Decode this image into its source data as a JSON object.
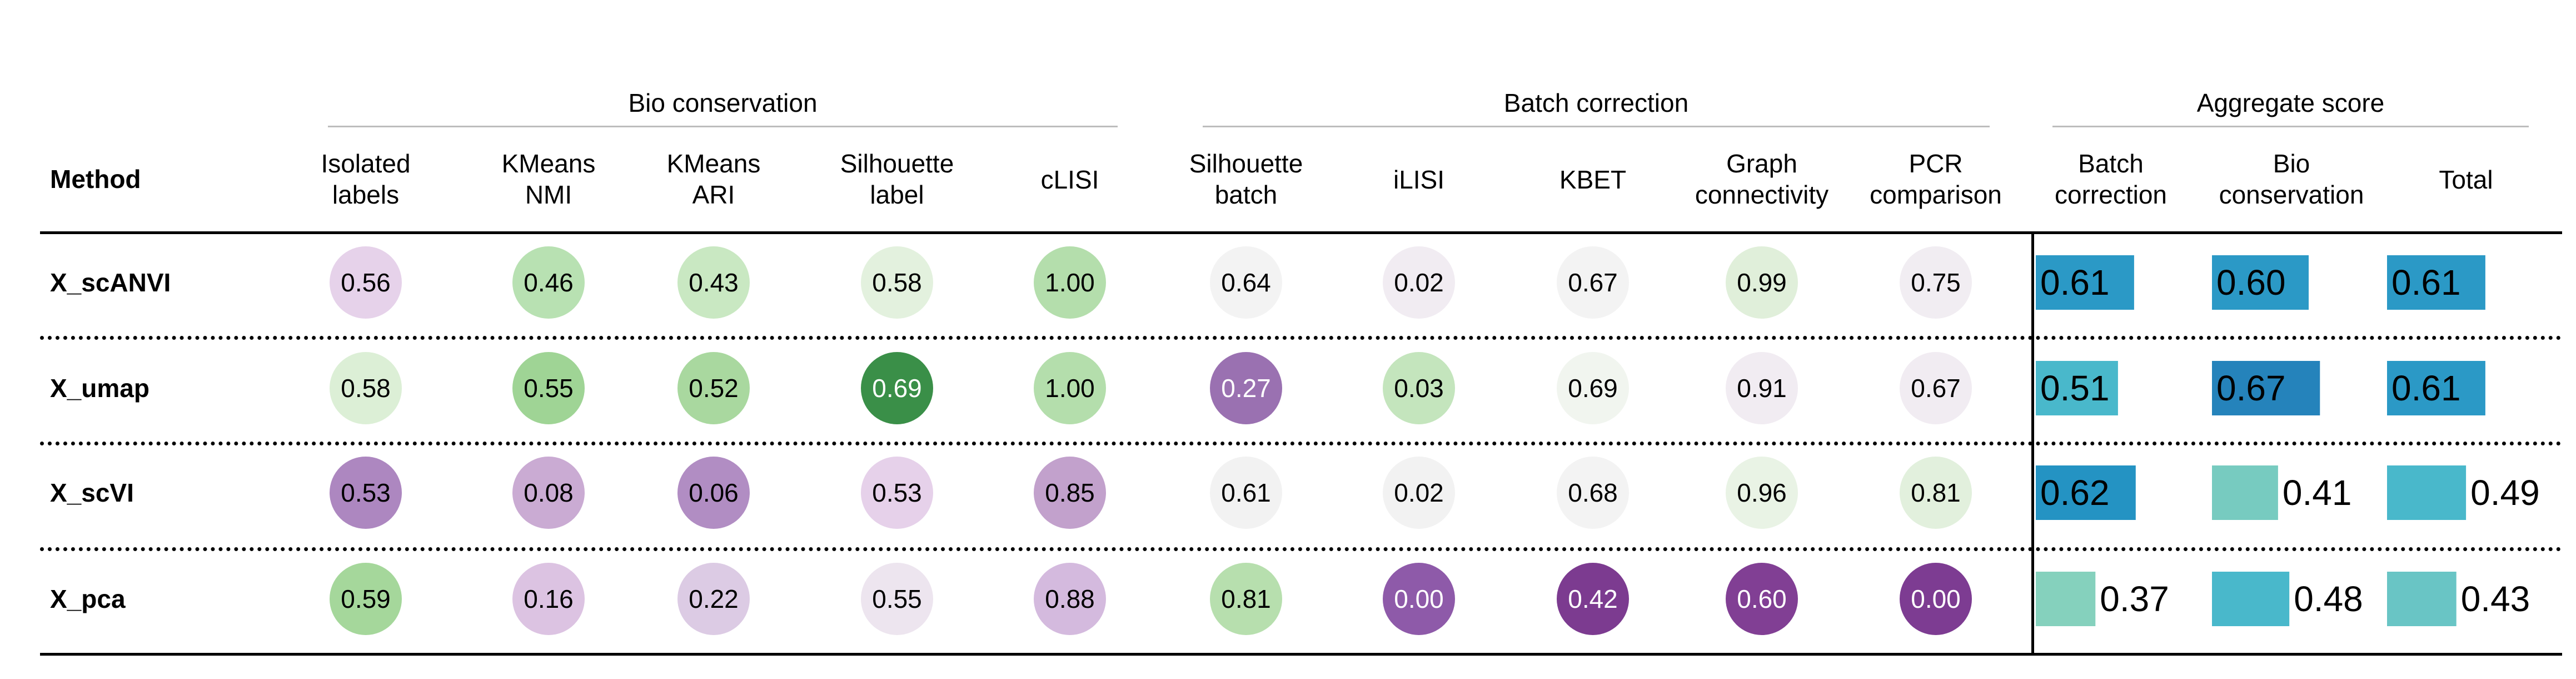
{
  "chart_data": {
    "type": "table",
    "method_header": "Method",
    "groups": [
      {
        "name": "Bio conservation",
        "columns": [
          "Isolated labels",
          "KMeans NMI",
          "KMeans ARI",
          "Silhouette label",
          "cLISI"
        ]
      },
      {
        "name": "Batch correction",
        "columns": [
          "Silhouette batch",
          "iLISI",
          "KBET",
          "Graph connectivity",
          "PCR comparison"
        ]
      },
      {
        "name": "Aggregate score",
        "columns": [
          "Batch correction",
          "Bio conservation",
          "Total"
        ]
      }
    ],
    "column_headers": [
      [
        "Isolated",
        "labels"
      ],
      [
        "KMeans",
        "NMI"
      ],
      [
        "KMeans",
        "ARI"
      ],
      [
        "Silhouette",
        "label"
      ],
      [
        "cLISI"
      ],
      [
        "Silhouette",
        "batch"
      ],
      [
        "iLISI"
      ],
      [
        "KBET"
      ],
      [
        "Graph",
        "connectivity"
      ],
      [
        "PCR",
        "comparison"
      ],
      [
        "Batch",
        "correction"
      ],
      [
        "Bio",
        "conservation"
      ],
      [
        "Total"
      ]
    ],
    "rows": [
      {
        "method": "X_scANVI",
        "metrics": [
          "0.56",
          "0.46",
          "0.43",
          "0.58",
          "1.00",
          "0.64",
          "0.02",
          "0.67",
          "0.99",
          "0.75"
        ],
        "aggregate": [
          "0.61",
          "0.60",
          "0.61"
        ]
      },
      {
        "method": "X_umap",
        "metrics": [
          "0.58",
          "0.55",
          "0.52",
          "0.69",
          "1.00",
          "0.27",
          "0.03",
          "0.69",
          "0.91",
          "0.67"
        ],
        "aggregate": [
          "0.51",
          "0.67",
          "0.61"
        ]
      },
      {
        "method": "X_scVI",
        "metrics": [
          "0.53",
          "0.08",
          "0.06",
          "0.53",
          "0.85",
          "0.61",
          "0.02",
          "0.68",
          "0.96",
          "0.81"
        ],
        "aggregate": [
          "0.62",
          "0.41",
          "0.49"
        ]
      },
      {
        "method": "X_pca",
        "metrics": [
          "0.59",
          "0.16",
          "0.22",
          "0.55",
          "0.88",
          "0.81",
          "0.00",
          "0.42",
          "0.60",
          "0.00"
        ],
        "aggregate": [
          "0.37",
          "0.48",
          "0.43"
        ]
      }
    ],
    "circle_colors": [
      [
        "#e6d2ea",
        "#b8e1b2",
        "#c9e8c2",
        "#e3f1de",
        "#b4deac",
        "#f3f3f3",
        "#f1ecf2",
        "#f3f3f3",
        "#e0efda",
        "#f1edf2"
      ],
      [
        "#dcefd6",
        "#9fd495",
        "#a9d89f",
        "#3a8f48",
        "#b4deac",
        "#9a71b1",
        "#c4e5bd",
        "#f1f5ef",
        "#f1ecf2",
        "#f1ecf2"
      ],
      [
        "#ad87c0",
        "#caabd3",
        "#b18dc3",
        "#e6d1ea",
        "#c2a1cc",
        "#f2f2f2",
        "#f2f2f2",
        "#f3f3f3",
        "#e9f3e5",
        "#e2f0dd"
      ],
      [
        "#a5d79b",
        "#dcc3e2",
        "#dccbe4",
        "#ede5ef",
        "#d4bade",
        "#b7dfae",
        "#8e5aa9",
        "#7c3b90",
        "#813f94",
        "#7d3c92"
      ]
    ],
    "circle_text_white": [
      [
        false,
        false,
        false,
        false,
        false,
        false,
        false,
        false,
        false,
        false
      ],
      [
        false,
        false,
        false,
        true,
        false,
        true,
        false,
        false,
        false,
        false
      ],
      [
        false,
        false,
        false,
        false,
        false,
        false,
        false,
        false,
        false,
        false
      ],
      [
        false,
        false,
        false,
        false,
        false,
        false,
        true,
        true,
        true,
        true
      ]
    ],
    "bar_colors": [
      [
        "#2b99c6",
        "#2b99c6",
        "#2b99c6"
      ],
      [
        "#49b8cb",
        "#2583bb",
        "#2b99c6"
      ],
      [
        "#2493c3",
        "#77cbc0",
        "#49b8cb"
      ],
      [
        "#85d1bd",
        "#49b8cb",
        "#69c5c5"
      ]
    ]
  }
}
